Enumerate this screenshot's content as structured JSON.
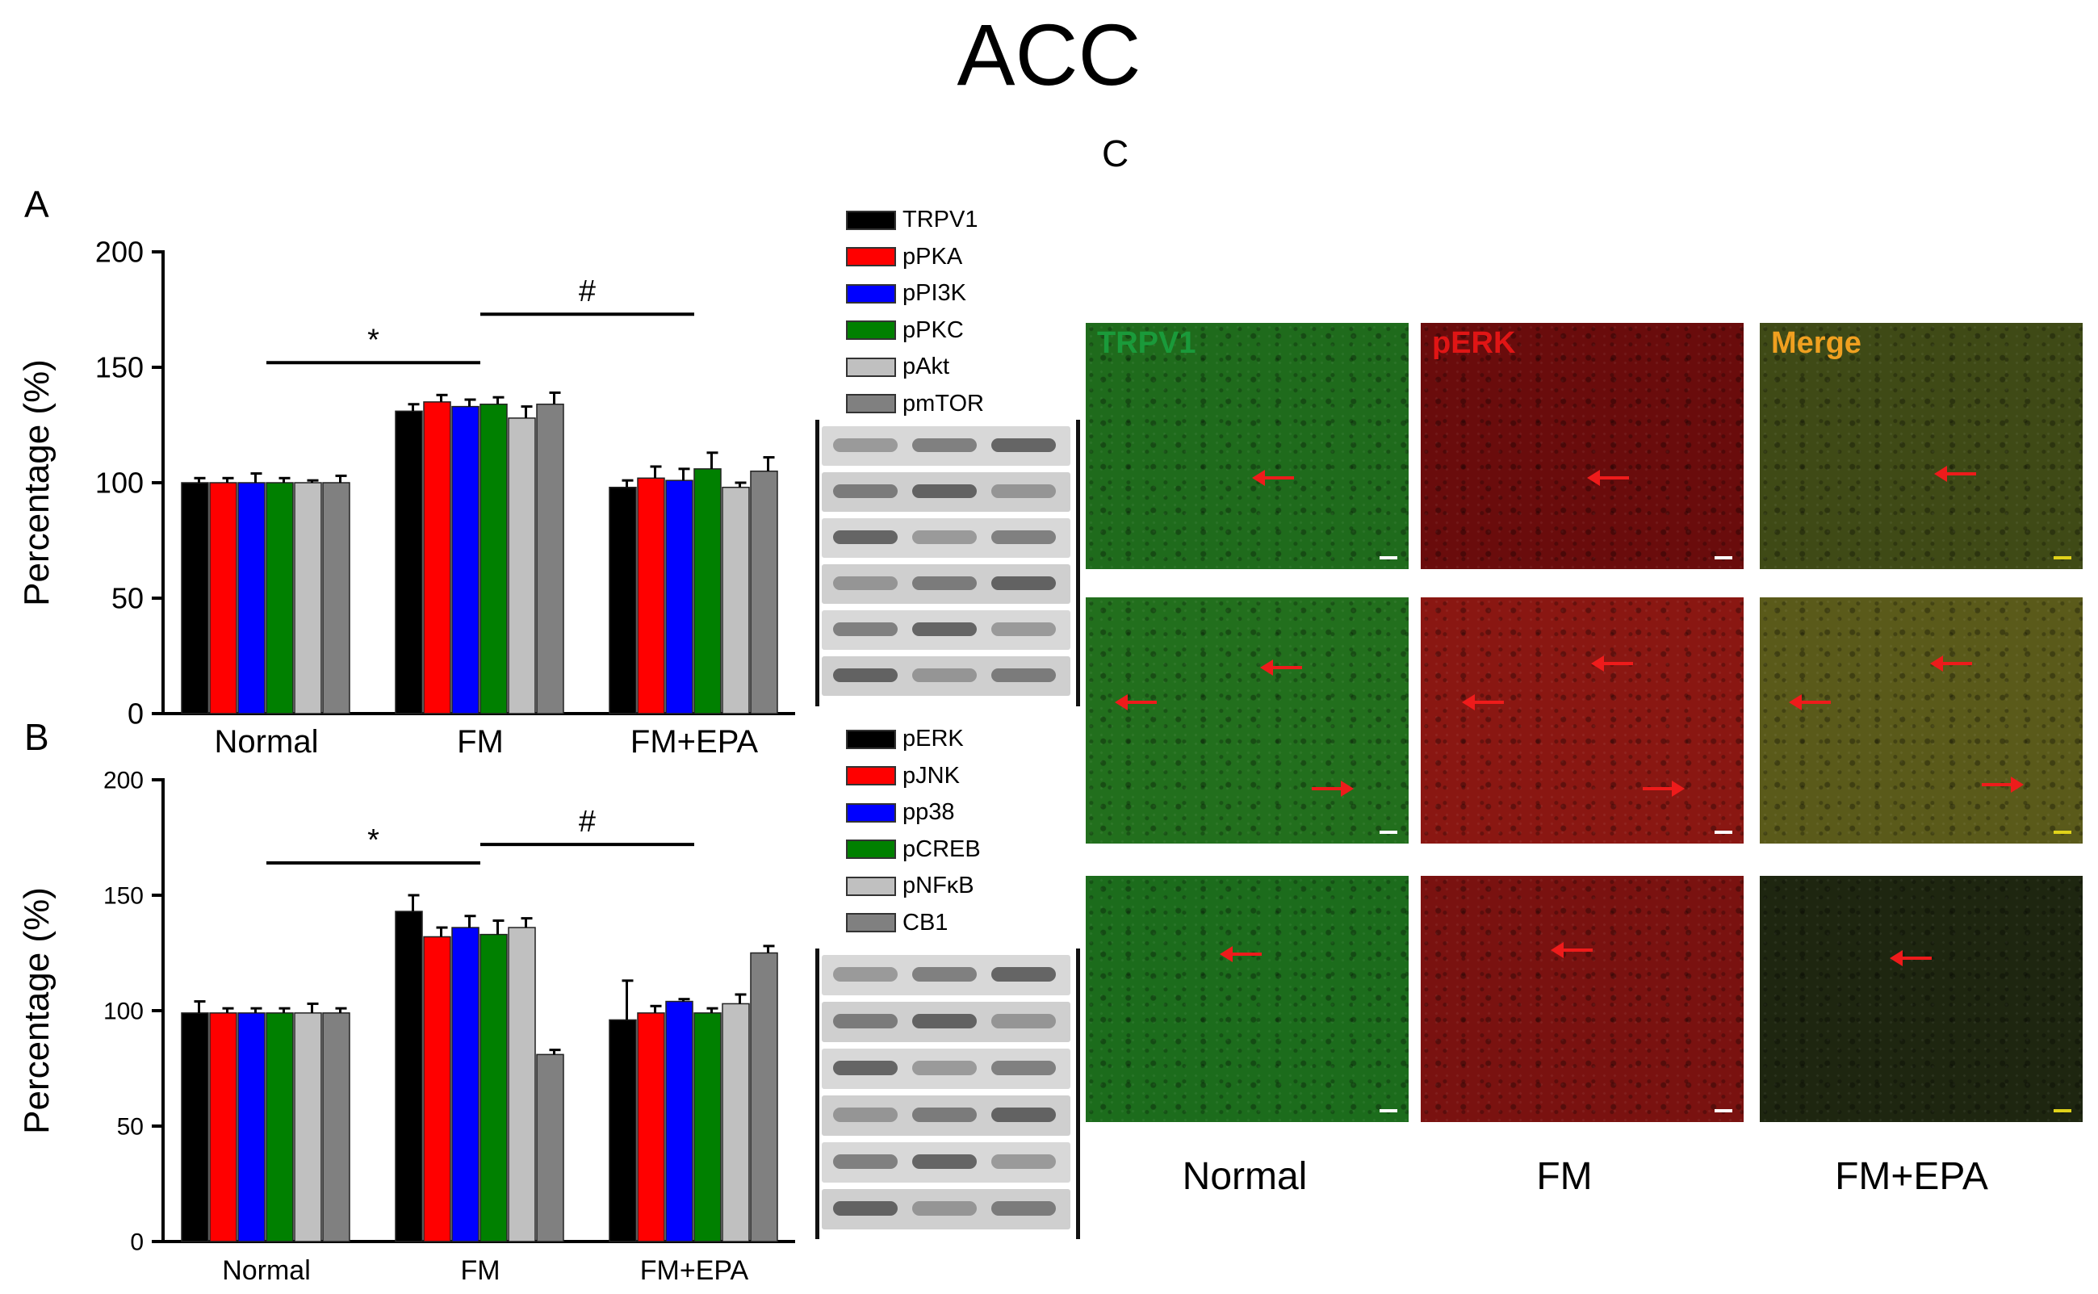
{
  "figure": {
    "title": "ACC",
    "panel_letters": {
      "a": "A",
      "b": "B",
      "c": "C"
    }
  },
  "chart_data": [
    {
      "type": "bar",
      "panel": "A",
      "ylabel": "Percentage (%)",
      "ylim": [
        0,
        200
      ],
      "yticks": [
        0,
        50,
        100,
        150,
        200
      ],
      "categories": [
        "Normal",
        "FM",
        "FM+EPA"
      ],
      "series": [
        {
          "name": "TRPV1",
          "color": "#000000",
          "values": [
            100,
            131,
            98
          ],
          "errors": [
            2,
            3,
            3
          ]
        },
        {
          "name": "pPKA",
          "color": "#ff0000",
          "values": [
            100,
            135,
            102
          ],
          "errors": [
            2,
            3,
            5
          ]
        },
        {
          "name": "pPI3K",
          "color": "#0000ff",
          "values": [
            100,
            133,
            101
          ],
          "errors": [
            4,
            3,
            5
          ]
        },
        {
          "name": "pPKC",
          "color": "#008000",
          "values": [
            100,
            134,
            106
          ],
          "errors": [
            2,
            3,
            7
          ]
        },
        {
          "name": "pAkt",
          "color": "#c0c0c0",
          "values": [
            100,
            128,
            98
          ],
          "errors": [
            1,
            5,
            2
          ]
        },
        {
          "name": "pmTOR",
          "color": "#808080",
          "values": [
            100,
            134,
            105
          ],
          "errors": [
            3,
            5,
            6
          ]
        }
      ],
      "annotations": [
        {
          "text": "*",
          "from_group": 0,
          "to_group": 1,
          "y": 152
        },
        {
          "text": "#",
          "from_group": 1,
          "to_group": 2,
          "y": 173
        }
      ]
    },
    {
      "type": "bar",
      "panel": "B",
      "ylabel": "Percentage (%)",
      "ylim": [
        0,
        200
      ],
      "yticks": [
        0,
        50,
        100,
        150,
        200
      ],
      "categories": [
        "Normal",
        "FM",
        "FM+EPA"
      ],
      "series": [
        {
          "name": "pERK",
          "color": "#000000",
          "values": [
            99,
            143,
            96
          ],
          "errors": [
            5,
            7,
            17
          ]
        },
        {
          "name": "pJNK",
          "color": "#ff0000",
          "values": [
            99,
            132,
            99
          ],
          "errors": [
            2,
            4,
            3
          ]
        },
        {
          "name": "pp38",
          "color": "#0000ff",
          "values": [
            99,
            136,
            104
          ],
          "errors": [
            2,
            5,
            1
          ]
        },
        {
          "name": "pCREB",
          "color": "#008000",
          "values": [
            99,
            133,
            99
          ],
          "errors": [
            2,
            6,
            2
          ]
        },
        {
          "name": "pNFκB",
          "color": "#c0c0c0",
          "values": [
            99,
            136,
            103
          ],
          "errors": [
            4,
            4,
            4
          ]
        },
        {
          "name": "CB1",
          "color": "#808080",
          "values": [
            99,
            81,
            125
          ],
          "errors": [
            2,
            2,
            3
          ]
        }
      ],
      "annotations": [
        {
          "text": "*",
          "from_group": 0,
          "to_group": 1,
          "y": 164
        },
        {
          "text": "#",
          "from_group": 1,
          "to_group": 2,
          "y": 172
        }
      ]
    }
  ],
  "micrographs": {
    "channel_labels": [
      "TRPV1",
      "pERK",
      "Merge"
    ],
    "channel_label_colors": [
      "#1a9a3a",
      "#e01515",
      "#f0a020"
    ],
    "columns": [
      "Normal",
      "FM",
      "FM+EPA"
    ],
    "tile_colors": [
      [
        "#1f6b1c",
        "#6a0c0c",
        "#3f4a16"
      ],
      [
        "#226f1d",
        "#8a1712",
        "#5a5a1a"
      ],
      [
        "#1c6c1c",
        "#7a1210",
        "#1e2610"
      ]
    ]
  }
}
